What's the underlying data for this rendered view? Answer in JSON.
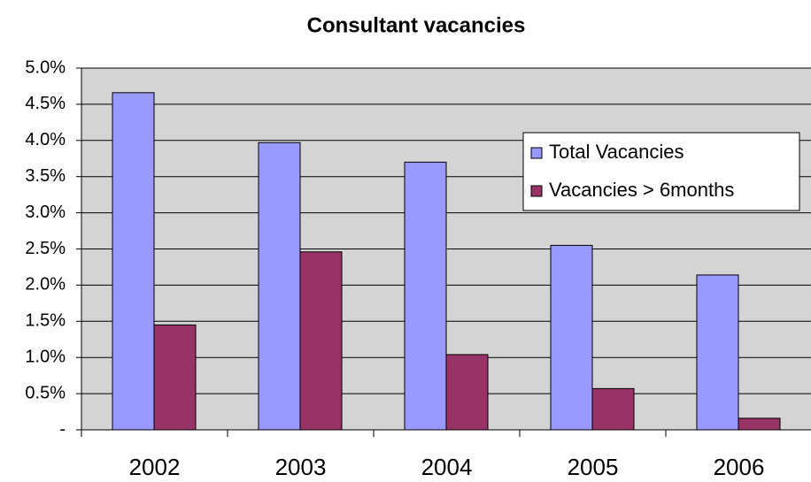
{
  "chart_data": {
    "type": "bar",
    "title": "Consultant vacancies",
    "categories": [
      "2002",
      "2003",
      "2004",
      "2005",
      "2006"
    ],
    "series": [
      {
        "name": "Total Vacancies",
        "color": "#9999ff",
        "values": [
          4.66,
          3.97,
          3.7,
          2.55,
          2.14
        ]
      },
      {
        "name": "Vacancies > 6months",
        "color": "#993366",
        "values": [
          1.45,
          2.46,
          1.04,
          0.57,
          0.16
        ]
      }
    ],
    "ylim": [
      0,
      5
    ],
    "yticks": [
      {
        "value": 0,
        "label": "-"
      },
      {
        "value": 0.5,
        "label": "0.5%"
      },
      {
        "value": 1,
        "label": "1.0%"
      },
      {
        "value": 1.5,
        "label": "1.5%"
      },
      {
        "value": 2,
        "label": "2.0%"
      },
      {
        "value": 2.5,
        "label": "2.5%"
      },
      {
        "value": 3,
        "label": "3.0%"
      },
      {
        "value": 3.5,
        "label": "3.5%"
      },
      {
        "value": 4,
        "label": "4.0%"
      },
      {
        "value": 4.5,
        "label": "4.5%"
      },
      {
        "value": 5,
        "label": "5.0%"
      }
    ],
    "grid": true,
    "legend": "upper right"
  }
}
